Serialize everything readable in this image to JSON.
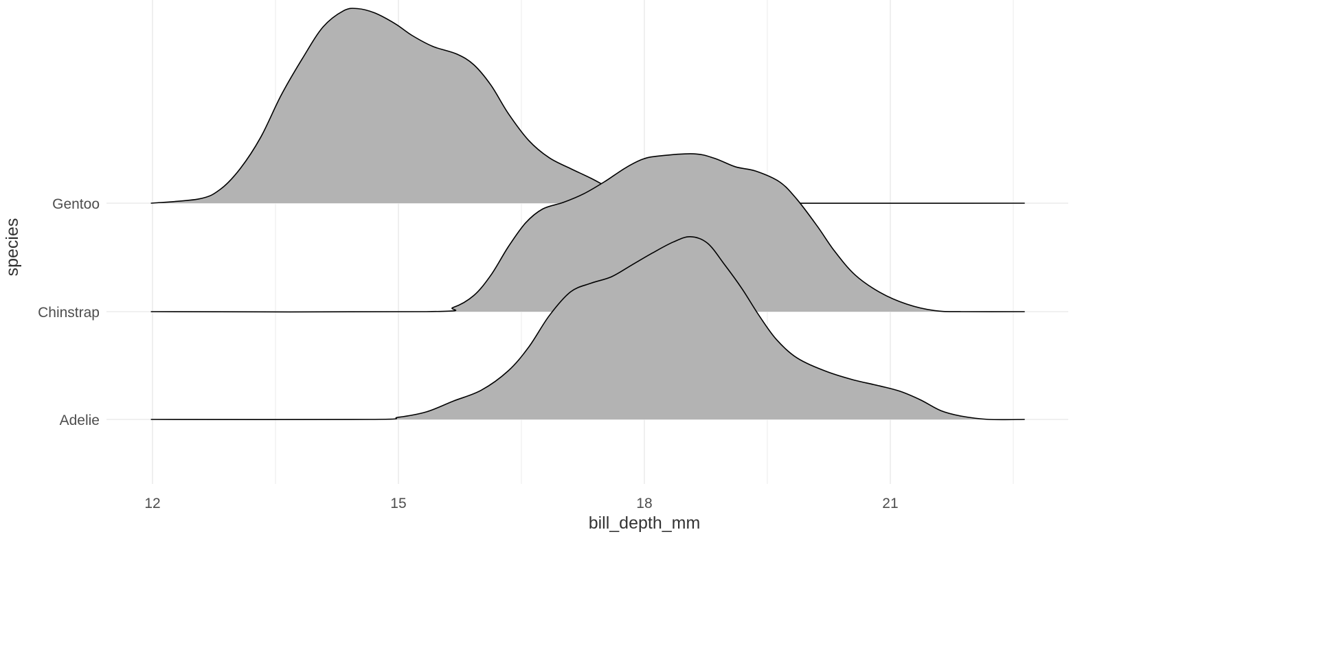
{
  "chart_data": {
    "type": "ridgeline",
    "title": "",
    "xlabel": "bill_depth_mm",
    "ylabel": "species",
    "xlim": [
      11.98,
      22.64
    ],
    "x_ticks": [
      12,
      15,
      18,
      21
    ],
    "x_tick_labels": [
      "12",
      "15",
      "18",
      "21"
    ],
    "x_minor_ticks": [
      13.5,
      16.5,
      19.5,
      22.5
    ],
    "categories": [
      "Adelie",
      "Chinstrap",
      "Gentoo"
    ],
    "grid": true,
    "fill_color": "#b3b3b3",
    "line_color": "#000000",
    "grid_color": "#ebebeb",
    "series": [
      {
        "name": "Gentoo",
        "x": [
          11.98,
          12.57,
          12.83,
          13.07,
          13.32,
          13.57,
          13.83,
          14.08,
          14.33,
          14.5,
          14.71,
          14.96,
          15.17,
          15.42,
          15.71,
          15.92,
          16.13,
          16.34,
          16.59,
          16.84,
          17.1,
          17.35,
          17.6,
          17.85,
          18.1,
          18.52,
          22.64
        ],
        "density_scaled": [
          0,
          0.04,
          0.13,
          0.32,
          0.61,
          1.0,
          1.34,
          1.63,
          1.78,
          1.8,
          1.76,
          1.66,
          1.55,
          1.45,
          1.38,
          1.28,
          1.09,
          0.83,
          0.58,
          0.42,
          0.32,
          0.23,
          0.13,
          0.05,
          0.01,
          0,
          0
        ]
      },
      {
        "name": "Chinstrap",
        "x": [
          11.98,
          15.34,
          15.67,
          15.92,
          16.13,
          16.34,
          16.55,
          16.76,
          17.01,
          17.26,
          17.51,
          17.77,
          17.98,
          18.18,
          18.6,
          18.85,
          19.11,
          19.36,
          19.65,
          19.86,
          20.11,
          20.32,
          20.57,
          20.87,
          21.2,
          21.54,
          21.87,
          22.64
        ],
        "density_scaled": [
          0,
          0,
          0.04,
          0.15,
          0.34,
          0.6,
          0.82,
          0.95,
          1.01,
          1.09,
          1.2,
          1.33,
          1.41,
          1.44,
          1.46,
          1.42,
          1.34,
          1.3,
          1.2,
          1.04,
          0.79,
          0.56,
          0.34,
          0.18,
          0.07,
          0.01,
          0,
          0
        ]
      },
      {
        "name": "Adelie",
        "x": [
          11.98,
          14.66,
          15.0,
          15.34,
          15.67,
          16.01,
          16.34,
          16.59,
          16.84,
          17.1,
          17.35,
          17.6,
          17.85,
          18.1,
          18.35,
          18.56,
          18.77,
          18.98,
          19.19,
          19.4,
          19.61,
          19.86,
          20.2,
          20.53,
          20.87,
          21.12,
          21.37,
          21.62,
          21.87,
          22.2,
          22.64
        ],
        "density_scaled": [
          0,
          0,
          0.02,
          0.07,
          0.17,
          0.27,
          0.45,
          0.67,
          0.96,
          1.18,
          1.26,
          1.32,
          1.43,
          1.54,
          1.64,
          1.69,
          1.63,
          1.43,
          1.21,
          0.96,
          0.74,
          0.57,
          0.45,
          0.37,
          0.31,
          0.26,
          0.18,
          0.08,
          0.03,
          0,
          0
        ]
      }
    ]
  }
}
